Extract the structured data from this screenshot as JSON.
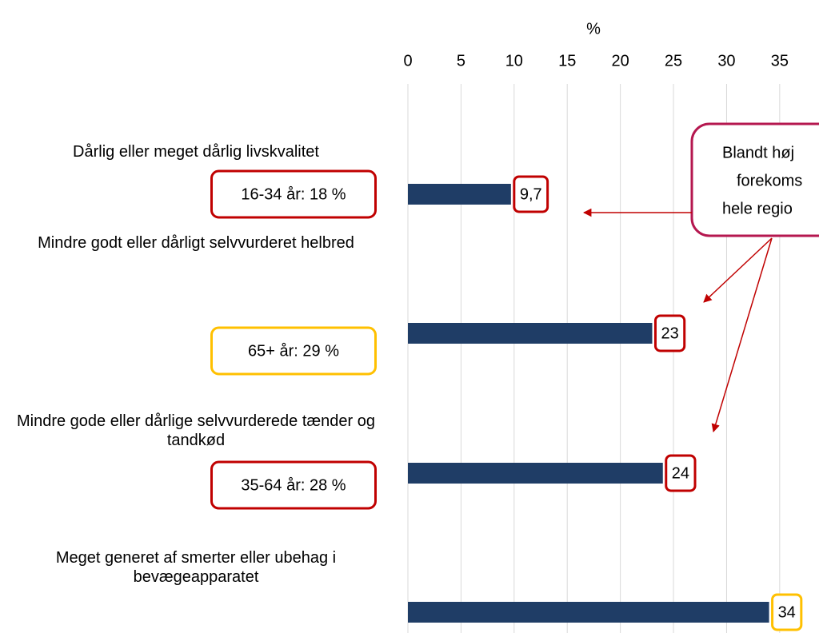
{
  "chart_data": {
    "type": "bar",
    "orientation": "horizontal",
    "x_axis_label": "%",
    "categories": [
      "Dårlig eller meget dårlig livskvalitet",
      "Mindre godt eller dårligt selvvurderet helbred",
      "Mindre gode eller dårlige selvvurderede tænder og tandkød",
      "Meget generet af smerter eller ubehag i bevægeapparatet"
    ],
    "values": [
      9.7,
      23,
      24,
      34
    ],
    "value_labels": [
      "9,7",
      "23",
      "24",
      "34"
    ],
    "value_label_colors": [
      "#c00000",
      "#c00000",
      "#c00000",
      "#ffc000"
    ],
    "color": "#1f3d66",
    "xlim": [
      0,
      38.7
    ],
    "xticks": [
      0,
      5,
      10,
      15,
      20,
      25,
      30,
      35
    ],
    "grid": true,
    "annotations": [
      {
        "text": "16-34 år: 18 %",
        "color": "#c00000"
      },
      {
        "text": "65+ år: 29 %",
        "color": "#ffc000"
      },
      {
        "text": "35-64 år: 28 %",
        "color": "#c00000"
      }
    ],
    "callout": [
      "Blandt høj",
      "forekoms",
      "hele regio"
    ]
  }
}
